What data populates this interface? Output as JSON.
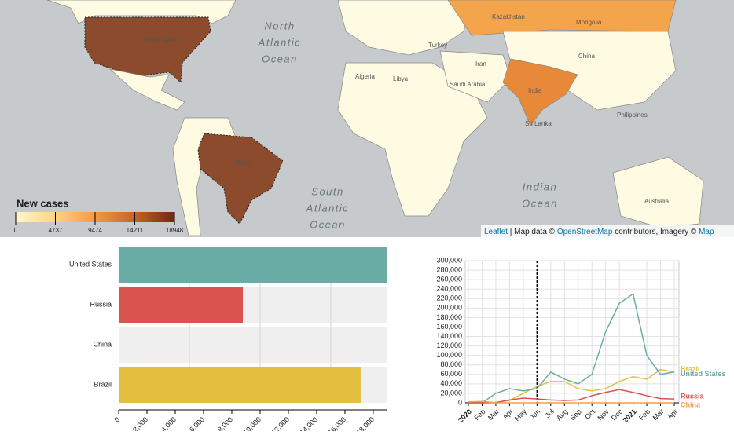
{
  "map": {
    "legend_title": "New cases",
    "legend_ticks": [
      0,
      4737,
      9474,
      14211,
      18948
    ],
    "legend_colors": [
      "#fff7c8",
      "#fdd38a",
      "#f29a3e",
      "#c8612a",
      "#6b2a10"
    ],
    "labels": [
      "United States",
      "Brazil",
      "India",
      "China",
      "Kazakhstan",
      "Mongolia",
      "Algeria",
      "Libya",
      "Saudi Arabia",
      "Iran",
      "Philippines",
      "Sri Lanka",
      "Australia",
      "Turkey"
    ],
    "north_atlantic": [
      "North",
      "Atlantic",
      "Ocean"
    ],
    "south_atlantic": [
      "South",
      "Atlantic",
      "Ocean"
    ],
    "indian_ocean": [
      "Indian",
      "Ocean"
    ],
    "attribution": {
      "leaflet": "Leaflet",
      "map_data": " | Map data © ",
      "osm": "OpenStreetMap",
      "contributors": " contributors, Imagery © ",
      "mapbox": "Map"
    }
  },
  "chart_data": [
    {
      "type": "hbar",
      "categories": [
        "United States",
        "Russia",
        "China",
        "Brazil"
      ],
      "values": [
        18948,
        8780,
        20,
        17110
      ],
      "colors": [
        "#6aada6",
        "#d9534f",
        "#e3bf3f",
        "#e3bf3f"
      ],
      "xlim": [
        0,
        18948
      ],
      "xticks": [
        0,
        {
          "value": 2000,
          "label": "2,000"
        },
        {
          "value": 4000,
          "label": "4,000"
        },
        {
          "value": 6000,
          "label": "6,000"
        },
        {
          "value": 8000,
          "label": "8,000"
        },
        {
          "value": 10000,
          "label": "10,000"
        },
        {
          "value": 12000,
          "label": "12,000"
        },
        {
          "value": 14000,
          "label": "14,000"
        },
        {
          "value": 16000,
          "label": "16,000"
        },
        {
          "value": 18000,
          "label": "18,000"
        }
      ],
      "xgrid": [
        5000,
        10000,
        15000
      ]
    },
    {
      "type": "line",
      "x": [
        "2020-01",
        "2020-02",
        "2020-03",
        "2020-04",
        "2020-05",
        "2020-06",
        "2020-07",
        "2020-08",
        "2020-09",
        "2020-10",
        "2020-11",
        "2020-12",
        "2021-01",
        "2021-02",
        "2021-03",
        "2021-04"
      ],
      "series": [
        {
          "name": "Brazil",
          "color": "#e3bf3f",
          "values": [
            0,
            0,
            1000,
            5000,
            20000,
            35000,
            45000,
            45000,
            30000,
            25000,
            30000,
            45000,
            55000,
            50000,
            70000,
            65000
          ]
        },
        {
          "name": "United States",
          "color": "#6aada6",
          "values": [
            0,
            0,
            20000,
            30000,
            25000,
            30000,
            65000,
            50000,
            40000,
            60000,
            150000,
            210000,
            230000,
            100000,
            60000,
            65000
          ]
        },
        {
          "name": "Russia",
          "color": "#d9534f",
          "values": [
            0,
            0,
            500,
            6000,
            10000,
            8000,
            6000,
            5000,
            6000,
            15000,
            22000,
            28000,
            22000,
            15000,
            9000,
            8000
          ]
        },
        {
          "name": "China",
          "color": "#f0a050",
          "values": [
            2000,
            3000,
            100,
            100,
            50,
            50,
            100,
            100,
            50,
            50,
            50,
            100,
            100,
            50,
            50,
            50
          ]
        }
      ],
      "xlim": [
        "2020-01",
        "2021-04"
      ],
      "xticks": [
        {
          "value": "2020-01",
          "label": "2020"
        },
        {
          "value": "2020-02",
          "label": "Feb"
        },
        {
          "value": "2020-03",
          "label": "Mar"
        },
        {
          "value": "2020-04",
          "label": "Apr"
        },
        {
          "value": "2020-05",
          "label": "May"
        },
        {
          "value": "2020-06",
          "label": "Jun"
        },
        {
          "value": "2020-07",
          "label": "Jul"
        },
        {
          "value": "2020-08",
          "label": "Aug"
        },
        {
          "value": "2020-09",
          "label": "Sep"
        },
        {
          "value": "2020-10",
          "label": "Oct"
        },
        {
          "value": "2020-11",
          "label": "Nov"
        },
        {
          "value": "2020-12",
          "label": "Dec"
        },
        {
          "value": "2021-01",
          "label": "2021"
        },
        {
          "value": "2021-02",
          "label": "Feb"
        },
        {
          "value": "2021-03",
          "label": "Mar"
        },
        {
          "value": "2021-04",
          "label": "Apr"
        }
      ],
      "ylim": [
        0,
        300000
      ],
      "yticks": [
        0,
        {
          "value": 20000,
          "label": "20,000"
        },
        {
          "value": 40000,
          "label": "40,000"
        },
        {
          "value": 60000,
          "label": "60,000"
        },
        {
          "value": 80000,
          "label": "80,000"
        },
        {
          "value": 100000,
          "label": "100,000"
        },
        {
          "value": 120000,
          "label": "120,000"
        },
        {
          "value": 140000,
          "label": "140,000"
        },
        {
          "value": 160000,
          "label": "160,000"
        },
        {
          "value": 180000,
          "label": "180,000"
        },
        {
          "value": 200000,
          "label": "200,000"
        },
        {
          "value": 220000,
          "label": "220,000"
        },
        {
          "value": 240000,
          "label": "240,000"
        },
        {
          "value": 260000,
          "label": "260,000"
        },
        {
          "value": 280000,
          "label": "280,000"
        },
        {
          "value": 300000,
          "label": "300,000"
        }
      ],
      "marker_x": "2020-06",
      "grid": true
    }
  ]
}
